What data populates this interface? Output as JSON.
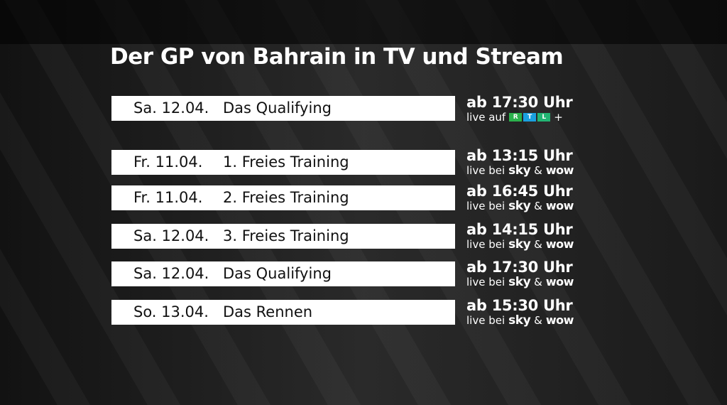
{
  "title": "Der GP von Bahrain in TV und Stream",
  "colors": {
    "rtl_a": "#2bb24c",
    "rtl_b": "#1aa0e0",
    "rtl_c": "#22b573"
  },
  "rows": [
    {
      "date": "Sa. 12.04.",
      "event": "Das Qualifying",
      "time": "ab 17:30 Uhr",
      "live_prefix": "live auf",
      "rtl_letters": [
        "R",
        "T",
        "L"
      ],
      "plus": "+"
    },
    {
      "date": "Fr.  11.04.",
      "event": "1. Freies Training",
      "time": "ab 13:15 Uhr",
      "live_prefix": "live bei",
      "sky": "sky",
      "amp": "&",
      "wow": "wow"
    },
    {
      "date": "Fr.  11.04.",
      "event": "2. Freies Training",
      "time": "ab 16:45 Uhr",
      "live_prefix": "live bei",
      "sky": "sky",
      "amp": "&",
      "wow": "wow"
    },
    {
      "date": "Sa. 12.04.",
      "event": "3. Freies Training",
      "time": "ab 14:15 Uhr",
      "live_prefix": "live bei",
      "sky": "sky",
      "amp": "&",
      "wow": "wow"
    },
    {
      "date": "Sa. 12.04.",
      "event": "Das Qualifying",
      "time": "ab 17:30 Uhr",
      "live_prefix": "live bei",
      "sky": "sky",
      "amp": "&",
      "wow": "wow"
    },
    {
      "date": "So. 13.04.",
      "event": "Das Rennen",
      "time": "ab 15:30 Uhr",
      "live_prefix": "live bei",
      "sky": "sky",
      "amp": "&",
      "wow": "wow"
    }
  ]
}
